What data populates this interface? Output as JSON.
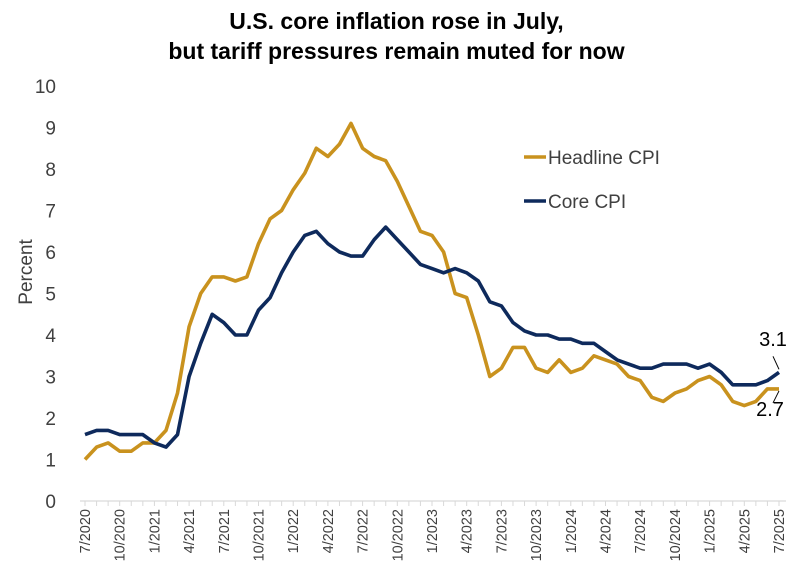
{
  "chart_data": {
    "type": "line",
    "title_lines": [
      "U.S. core inflation rose in July,",
      "but tariff pressures remain muted for now"
    ],
    "xlabel": "",
    "ylabel": "Percent",
    "ylim": [
      0,
      10
    ],
    "yticks": [
      0,
      1,
      2,
      3,
      4,
      5,
      6,
      7,
      8,
      9,
      10
    ],
    "x_tick_labels": [
      "7/2020",
      "10/2020",
      "1/2021",
      "4/2021",
      "7/2021",
      "10/2021",
      "1/2022",
      "4/2022",
      "7/2022",
      "10/2022",
      "1/2023",
      "4/2023",
      "7/2023",
      "10/2023",
      "1/2024",
      "4/2024",
      "7/2024",
      "10/2024",
      "1/2025",
      "4/2025",
      "7/2025"
    ],
    "x_start": "7/2020",
    "x_end": "7/2025",
    "grid": false,
    "legend_position": "upper-right",
    "series": [
      {
        "name": "Headline CPI",
        "color": "#C9921E",
        "values": [
          1.0,
          1.3,
          1.4,
          1.2,
          1.2,
          1.4,
          1.4,
          1.7,
          2.6,
          4.2,
          5.0,
          5.4,
          5.4,
          5.3,
          5.4,
          6.2,
          6.8,
          7.0,
          7.5,
          7.9,
          8.5,
          8.3,
          8.6,
          9.1,
          8.5,
          8.3,
          8.2,
          7.7,
          7.1,
          6.5,
          6.4,
          6.0,
          5.0,
          4.9,
          4.0,
          3.0,
          3.2,
          3.7,
          3.7,
          3.2,
          3.1,
          3.4,
          3.1,
          3.2,
          3.5,
          3.4,
          3.3,
          3.0,
          2.9,
          2.5,
          2.4,
          2.6,
          2.7,
          2.9,
          3.0,
          2.8,
          2.4,
          2.3,
          2.4,
          2.7,
          2.7
        ],
        "end_label": "2.7"
      },
      {
        "name": "Core CPI",
        "color": "#0E2A5C",
        "values": [
          1.6,
          1.7,
          1.7,
          1.6,
          1.6,
          1.6,
          1.4,
          1.3,
          1.6,
          3.0,
          3.8,
          4.5,
          4.3,
          4.0,
          4.0,
          4.6,
          4.9,
          5.5,
          6.0,
          6.4,
          6.5,
          6.2,
          6.0,
          5.9,
          5.9,
          6.3,
          6.6,
          6.3,
          6.0,
          5.7,
          5.6,
          5.5,
          5.6,
          5.5,
          5.3,
          4.8,
          4.7,
          4.3,
          4.1,
          4.0,
          4.0,
          3.9,
          3.9,
          3.8,
          3.8,
          3.6,
          3.4,
          3.3,
          3.2,
          3.2,
          3.3,
          3.3,
          3.3,
          3.2,
          3.3,
          3.1,
          2.8,
          2.8,
          2.8,
          2.9,
          3.1
        ],
        "end_label": "3.1"
      }
    ]
  }
}
